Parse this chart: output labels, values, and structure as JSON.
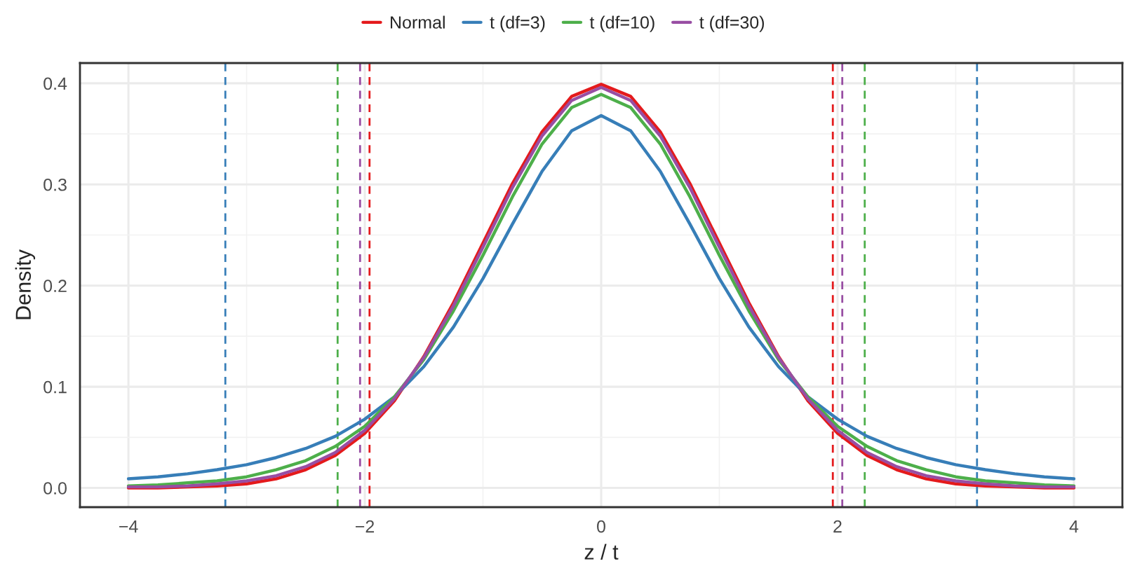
{
  "chart_data": {
    "type": "line",
    "x": [
      -4,
      -3.75,
      -3.5,
      -3.25,
      -3,
      -2.75,
      -2.5,
      -2.25,
      -2,
      -1.75,
      -1.5,
      -1.25,
      -1,
      -0.75,
      -0.5,
      -0.25,
      0,
      0.25,
      0.5,
      0.75,
      1,
      1.25,
      1.5,
      1.75,
      2,
      2.25,
      2.5,
      2.75,
      3,
      3.25,
      3.5,
      3.75,
      4
    ],
    "series": [
      {
        "name": "Normal",
        "color": "#e41a1c",
        "values": [
          0.0,
          0.0,
          0.001,
          0.002,
          0.004,
          0.009,
          0.018,
          0.032,
          0.054,
          0.086,
          0.13,
          0.183,
          0.242,
          0.301,
          0.352,
          0.387,
          0.399,
          0.387,
          0.352,
          0.301,
          0.242,
          0.183,
          0.13,
          0.086,
          0.054,
          0.032,
          0.018,
          0.009,
          0.004,
          0.002,
          0.001,
          0.0,
          0.0
        ]
      },
      {
        "name": "t (df=3)",
        "color": "#377eb8",
        "values": [
          0.009,
          0.011,
          0.014,
          0.018,
          0.023,
          0.03,
          0.039,
          0.051,
          0.068,
          0.09,
          0.12,
          0.159,
          0.207,
          0.261,
          0.313,
          0.353,
          0.368,
          0.353,
          0.313,
          0.261,
          0.207,
          0.159,
          0.12,
          0.09,
          0.068,
          0.051,
          0.039,
          0.03,
          0.023,
          0.018,
          0.014,
          0.011,
          0.009
        ]
      },
      {
        "name": "t (df=10)",
        "color": "#4daf4a",
        "values": [
          0.002,
          0.003,
          0.005,
          0.007,
          0.011,
          0.018,
          0.027,
          0.041,
          0.061,
          0.09,
          0.127,
          0.175,
          0.23,
          0.288,
          0.34,
          0.376,
          0.389,
          0.376,
          0.34,
          0.288,
          0.23,
          0.175,
          0.127,
          0.09,
          0.061,
          0.041,
          0.027,
          0.018,
          0.011,
          0.007,
          0.005,
          0.003,
          0.002
        ]
      },
      {
        "name": "t (df=30)",
        "color": "#984ea3",
        "values": [
          0.001,
          0.001,
          0.002,
          0.004,
          0.007,
          0.012,
          0.021,
          0.035,
          0.057,
          0.088,
          0.129,
          0.18,
          0.238,
          0.297,
          0.348,
          0.383,
          0.396,
          0.383,
          0.348,
          0.297,
          0.238,
          0.18,
          0.129,
          0.088,
          0.057,
          0.035,
          0.021,
          0.012,
          0.007,
          0.004,
          0.002,
          0.001,
          0.001
        ]
      }
    ],
    "ref_lines": [
      {
        "axis": "x",
        "value": -1.96,
        "color": "#e41a1c",
        "line_style": "dashed"
      },
      {
        "axis": "x",
        "value": 1.96,
        "color": "#e41a1c",
        "line_style": "dashed"
      },
      {
        "axis": "x",
        "value": -3.18,
        "color": "#377eb8",
        "line_style": "dashed"
      },
      {
        "axis": "x",
        "value": 3.18,
        "color": "#377eb8",
        "line_style": "dashed"
      },
      {
        "axis": "x",
        "value": -2.23,
        "color": "#4daf4a",
        "line_style": "dashed"
      },
      {
        "axis": "x",
        "value": 2.23,
        "color": "#4daf4a",
        "line_style": "dashed"
      },
      {
        "axis": "x",
        "value": -2.04,
        "color": "#984ea3",
        "line_style": "dashed"
      },
      {
        "axis": "x",
        "value": 2.04,
        "color": "#984ea3",
        "line_style": "dashed"
      }
    ],
    "xlabel": "z / t",
    "ylabel": "Density",
    "xlim": [
      -4.41,
      4.41
    ],
    "ylim": [
      -0.019,
      0.42
    ],
    "xticks": [
      {
        "value": -4,
        "label": "−4"
      },
      {
        "value": -2,
        "label": "−2"
      },
      0,
      2,
      4
    ],
    "yticks": [
      {
        "value": 0,
        "label": "0.0"
      },
      0.1,
      0.2,
      0.3,
      0.4
    ],
    "grid": true,
    "legend": "top",
    "marker": "none",
    "line_style": "solid"
  }
}
